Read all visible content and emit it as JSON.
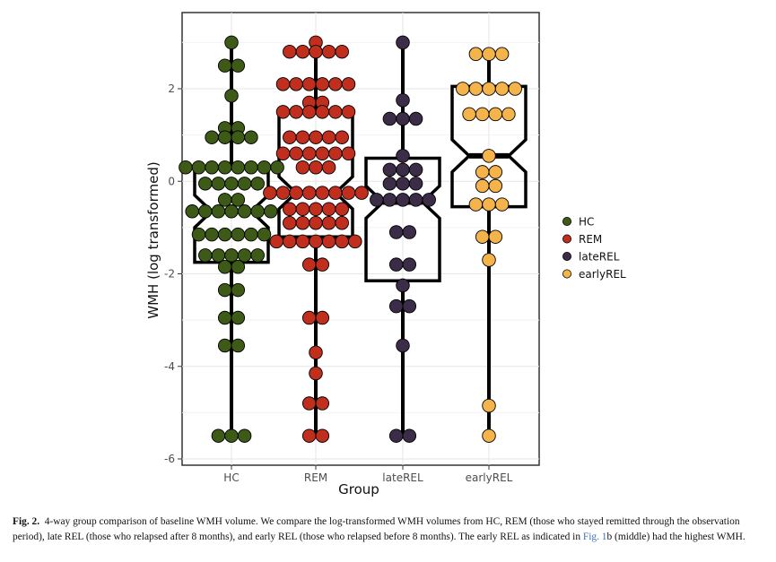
{
  "chart_data": {
    "type": "dot-boxplot",
    "xlabel": "Group",
    "ylabel": "WMH (log transformed)",
    "ylim": [
      -6.1,
      3.25
    ],
    "yticks": [
      2,
      0,
      -2,
      -4,
      -6
    ],
    "categories": [
      "HC",
      "REM",
      "lateREL",
      "earlyREL"
    ],
    "grid": true,
    "legend_position": "right",
    "legend": [
      {
        "label": "HC",
        "color": "#3d5a17"
      },
      {
        "label": "REM",
        "color": "#c02e1d"
      },
      {
        "label": "lateREL",
        "color": "#3b2d48"
      },
      {
        "label": "earlyREL",
        "color": "#f5b44b"
      }
    ],
    "series": [
      {
        "name": "HC",
        "color": "#3d5a17",
        "box": {
          "q1": -1.75,
          "median": -0.65,
          "q3": 0.3,
          "whisker_low": -5.5,
          "whisker_high": 3.0
        },
        "points": [
          3.0,
          2.5,
          2.5,
          1.85,
          1.15,
          1.15,
          0.95,
          0.95,
          0.95,
          0.95,
          0.3,
          0.3,
          0.3,
          0.3,
          0.3,
          0.3,
          0.3,
          0.3,
          -0.05,
          -0.05,
          -0.05,
          -0.05,
          -0.05,
          -0.4,
          -0.4,
          -0.65,
          -0.65,
          -0.65,
          -0.65,
          -0.65,
          -0.65,
          -0.65,
          -1.15,
          -1.15,
          -1.15,
          -1.15,
          -1.15,
          -1.15,
          -1.6,
          -1.6,
          -1.6,
          -1.6,
          -1.6,
          -1.85,
          -1.85,
          -2.35,
          -2.35,
          -2.95,
          -2.95,
          -3.55,
          -3.55,
          -5.5,
          -5.5,
          -5.5
        ]
      },
      {
        "name": "REM",
        "color": "#c02e1d",
        "box": {
          "q1": -1.2,
          "median": -0.25,
          "q3": 1.5,
          "whisker_low": -5.5,
          "whisker_high": 3.0
        },
        "points": [
          3.0,
          2.8,
          2.8,
          2.8,
          2.8,
          2.8,
          2.1,
          2.1,
          2.1,
          2.1,
          2.1,
          2.1,
          1.7,
          1.7,
          1.5,
          1.5,
          1.5,
          1.5,
          1.5,
          1.5,
          0.95,
          0.95,
          0.95,
          0.95,
          0.95,
          0.6,
          0.6,
          0.6,
          0.6,
          0.6,
          0.6,
          0.3,
          0.3,
          0.3,
          -0.25,
          -0.25,
          -0.25,
          -0.25,
          -0.25,
          -0.25,
          -0.25,
          -0.25,
          -0.6,
          -0.6,
          -0.6,
          -0.6,
          -0.6,
          -0.9,
          -0.9,
          -0.9,
          -0.9,
          -0.9,
          -1.3,
          -1.3,
          -1.3,
          -1.3,
          -1.3,
          -1.3,
          -1.3,
          -1.8,
          -1.8,
          -2.95,
          -2.95,
          -3.7,
          -4.15,
          -4.8,
          -4.8,
          -5.5,
          -5.5
        ]
      },
      {
        "name": "lateREL",
        "color": "#3b2d48",
        "box": {
          "q1": -2.15,
          "median": -0.45,
          "q3": 0.5,
          "whisker_low": -5.5,
          "whisker_high": 3.0
        },
        "points": [
          3.0,
          1.75,
          1.35,
          1.35,
          1.35,
          0.55,
          0.25,
          0.25,
          0.25,
          -0.05,
          -0.05,
          -0.05,
          -0.4,
          -0.4,
          -0.4,
          -0.4,
          -0.4,
          -1.1,
          -1.1,
          -1.8,
          -1.8,
          -2.25,
          -2.7,
          -2.7,
          -3.55,
          -5.5,
          -5.5
        ]
      },
      {
        "name": "earlyREL",
        "color": "#f5b44b",
        "box": {
          "q1": -0.55,
          "median": 0.55,
          "q3": 2.05,
          "whisker_low": -5.5,
          "whisker_high": 2.75
        },
        "points": [
          2.75,
          2.75,
          2.75,
          2.0,
          2.0,
          2.0,
          2.0,
          2.0,
          1.45,
          1.45,
          1.45,
          1.45,
          0.55,
          0.2,
          0.2,
          -0.1,
          -0.1,
          -0.5,
          -0.5,
          -0.5,
          -1.2,
          -1.2,
          -1.7,
          -4.85,
          -5.5
        ]
      }
    ]
  },
  "caption": {
    "label": "Fig. 2.",
    "text": "4-way group comparison of baseline WMH volume. We compare the log-transformed WMH volumes from HC, REM (those who stayed remitted through the observation period), late REL (those who relapsed after 8 months), and early REL (those who relapsed before 8 months). The early REL as indicated in",
    "link": "Fig. 1",
    "text_end": "b (middle) had the highest WMH."
  }
}
